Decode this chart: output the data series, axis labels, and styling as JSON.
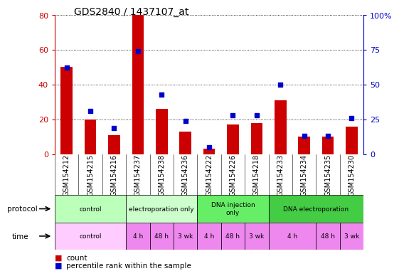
{
  "title": "GDS2840 / 1437107_at",
  "categories": [
    "GSM154212",
    "GSM154215",
    "GSM154216",
    "GSM154237",
    "GSM154238",
    "GSM154236",
    "GSM154222",
    "GSM154226",
    "GSM154218",
    "GSM154233",
    "GSM154234",
    "GSM154235",
    "GSM154230"
  ],
  "count_values": [
    50,
    20,
    11,
    80,
    26,
    13,
    3,
    17,
    18,
    31,
    10,
    10,
    16
  ],
  "percentile_values": [
    62,
    31,
    19,
    74,
    43,
    24,
    5,
    28,
    28,
    50,
    13,
    13,
    26
  ],
  "left_ylim": [
    0,
    80
  ],
  "left_yticks": [
    0,
    20,
    40,
    60,
    80
  ],
  "right_yticks": [
    0,
    25,
    50,
    75,
    100
  ],
  "right_yticklabels": [
    "0",
    "25",
    "50",
    "75",
    "100%"
  ],
  "bar_color": "#cc0000",
  "dot_color": "#0000cc",
  "xlabel_color": "#cc0000",
  "ylabel_right_color": "#0000cc",
  "bg_color": "#ffffff",
  "title_fontsize": 10,
  "tick_fontsize": 7,
  "proto_data": [
    [
      0,
      3,
      "#bbffbb",
      "control"
    ],
    [
      3,
      6,
      "#ccffcc",
      "electroporation only"
    ],
    [
      6,
      9,
      "#66ee66",
      "DNA injection\nonly"
    ],
    [
      9,
      13,
      "#44cc44",
      "DNA electroporation"
    ]
  ],
  "time_data": [
    [
      0,
      3,
      "#ffccff",
      "control"
    ],
    [
      3,
      4,
      "#ee88ee",
      "4 h"
    ],
    [
      4,
      5,
      "#ee88ee",
      "48 h"
    ],
    [
      5,
      6,
      "#ee88ee",
      "3 wk"
    ],
    [
      6,
      7,
      "#ee88ee",
      "4 h"
    ],
    [
      7,
      8,
      "#ee88ee",
      "48 h"
    ],
    [
      8,
      9,
      "#ee88ee",
      "3 wk"
    ],
    [
      9,
      11,
      "#ee88ee",
      "4 h"
    ],
    [
      11,
      12,
      "#ee88ee",
      "48 h"
    ],
    [
      12,
      13,
      "#ee88ee",
      "3 wk"
    ]
  ]
}
